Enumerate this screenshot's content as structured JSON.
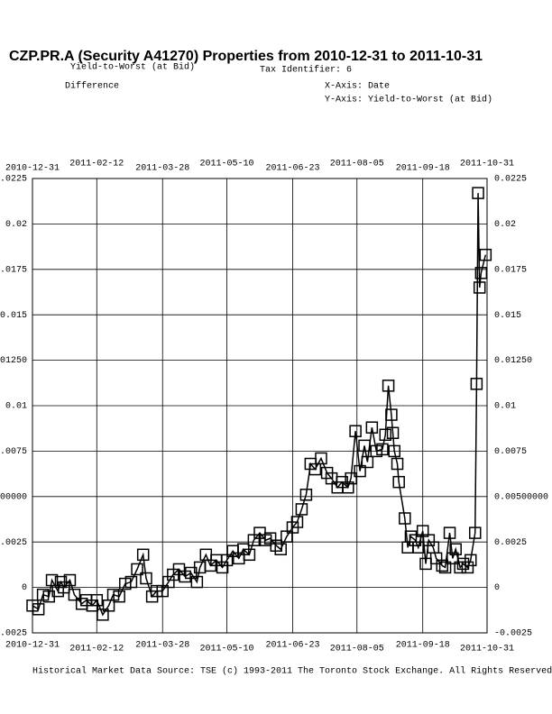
{
  "chart_data": {
    "type": "line",
    "title": "CZP.PR.A (Security A41270) Properties from 2010-12-31 to 2011-10-31",
    "subtitle": "Yield-to-Worst (at Bid)",
    "tax_identifier": "Tax Identifier: 6",
    "measure": "Difference",
    "x_label": "X-Axis: Date",
    "y_label": "Y-Axis:  Yield-to-Worst (at Bid)",
    "source": "Historical Market Data Source: TSE (c) 1993-2011 The Toronto Stock Exchange. All Rights Reserved",
    "color": "#000000",
    "grid": true,
    "xlim": [
      "2010-12-31",
      "2011-10-31"
    ],
    "xticks": [
      "2010-12-31",
      "2011-02-12",
      "2011-03-28",
      "2011-05-10",
      "2011-06-23",
      "2011-08-05",
      "2011-09-18",
      "2011-10-31"
    ],
    "ylim": [
      -0.0025,
      0.0225
    ],
    "yticks": [
      -0.0025,
      0,
      0.0025,
      {
        "value": 0.005,
        "label": "0.00500000"
      },
      0.0075,
      0.01,
      {
        "value": 0.0125,
        "label": "0.01250"
      },
      0.015,
      0.0175,
      0.02,
      0.0225
    ],
    "x": [
      "2010-12-31",
      "2011-01-04",
      "2011-01-07",
      "2011-01-11",
      "2011-01-13",
      "2011-01-17",
      "2011-01-19",
      "2011-01-21",
      "2011-01-25",
      "2011-01-28",
      "2011-02-02",
      "2011-02-05",
      "2011-02-09",
      "2011-02-12",
      "2011-02-16",
      "2011-02-20",
      "2011-02-23",
      "2011-02-27",
      "2011-03-03",
      "2011-03-07",
      "2011-03-11",
      "2011-03-15",
      "2011-03-17",
      "2011-03-21",
      "2011-03-24",
      "2011-03-28",
      "2011-04-01",
      "2011-04-04",
      "2011-04-08",
      "2011-04-12",
      "2011-04-16",
      "2011-04-20",
      "2011-04-22",
      "2011-04-26",
      "2011-04-29",
      "2011-05-03",
      "2011-05-07",
      "2011-05-10",
      "2011-05-14",
      "2011-05-18",
      "2011-05-21",
      "2011-05-25",
      "2011-05-28",
      "2011-06-01",
      "2011-06-05",
      "2011-06-08",
      "2011-06-12",
      "2011-06-15",
      "2011-06-19",
      "2011-06-23",
      "2011-06-26",
      "2011-06-29",
      "2011-07-02",
      "2011-07-05",
      "2011-07-08",
      "2011-07-12",
      "2011-07-16",
      "2011-07-19",
      "2011-07-23",
      "2011-07-26",
      "2011-07-30",
      "2011-08-01",
      "2011-08-04",
      "2011-08-07",
      "2011-08-10",
      "2011-08-12",
      "2011-08-15",
      "2011-08-18",
      "2011-08-22",
      "2011-08-24",
      "2011-08-26",
      "2011-08-28",
      "2011-08-29",
      "2011-08-30",
      "2011-09-01",
      "2011-09-02",
      "2011-09-06",
      "2011-09-08",
      "2011-09-10",
      "2011-09-13",
      "2011-09-15",
      "2011-09-18",
      "2011-09-20",
      "2011-09-22",
      "2011-09-25",
      "2011-09-27",
      "2011-10-01",
      "2011-10-03",
      "2011-10-06",
      "2011-10-08",
      "2011-10-10",
      "2011-10-13",
      "2011-10-15",
      "2011-10-18",
      "2011-10-20",
      "2011-10-23",
      "2011-10-24",
      "2011-10-25",
      "2011-10-26",
      "2011-10-27",
      "2011-10-30"
    ],
    "values": [
      -0.001,
      -0.0012,
      -0.0004,
      -0.0005,
      0.0004,
      -0.0002,
      0.0003,
      0,
      0.0004,
      -0.0004,
      -0.0009,
      -0.0007,
      -0.001,
      -0.0007,
      -0.0015,
      -0.001,
      -0.0004,
      -0.0005,
      0.0002,
      0.0003,
      0.001,
      0.0018,
      0.0005,
      -0.0005,
      -0.0002,
      -0.0002,
      0.0003,
      0.0007,
      0.001,
      0.0006,
      0.0008,
      0.0003,
      0.0011,
      0.0018,
      0.0012,
      0.0015,
      0.0011,
      0.0015,
      0.002,
      0.0016,
      0.0021,
      0.0018,
      0.0026,
      0.003,
      0.0026,
      0.0027,
      0.0023,
      0.0021,
      0.0028,
      0.0033,
      0.0036,
      0.0043,
      0.0051,
      0.0068,
      0.0065,
      0.0071,
      0.0063,
      0.006,
      0.0055,
      0.0058,
      0.0055,
      0.006,
      0.0086,
      0.0064,
      0.0078,
      0.0069,
      0.0088,
      0.0075,
      0.0076,
      0.0084,
      0.0111,
      0.0095,
      0.0085,
      0.0075,
      0.0068,
      0.0058,
      0.0038,
      0.0022,
      0.0028,
      0.0026,
      0.0022,
      0.0031,
      0.0013,
      0.0026,
      0.0022,
      0.0016,
      0.0012,
      0.0011,
      0.003,
      0.0016,
      0.0021,
      0.0011,
      0.0013,
      0.0011,
      0.0015,
      0.003,
      0.0112,
      0.0217,
      0.0165,
      0.0173,
      0.0183
    ]
  }
}
